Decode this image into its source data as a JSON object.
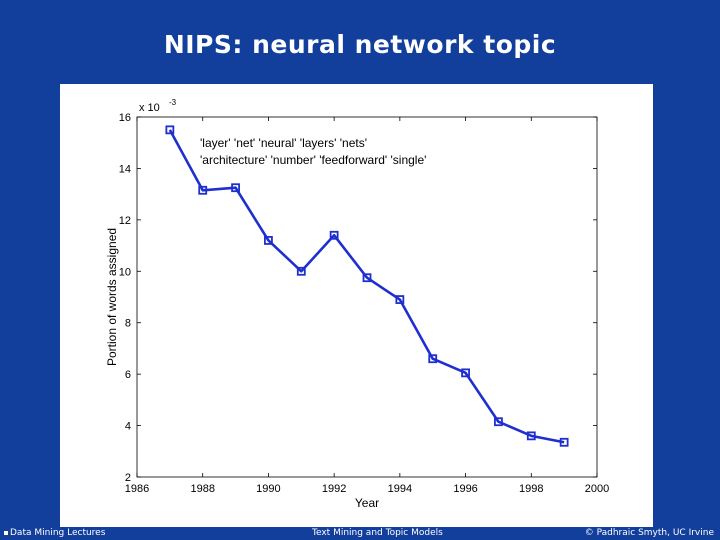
{
  "slide": {
    "title": "NIPS: neural network topic"
  },
  "footer": {
    "left": "Data Mining Lectures",
    "center": "Text Mining and Topic Models",
    "right": "© Padhraic Smyth, UC Irvine"
  },
  "chart_data": {
    "type": "line",
    "xlabel": "Year",
    "ylabel": "Portion of words assigned",
    "y_multiplier": "x 10",
    "y_multiplier_exp": "-3",
    "xlim": [
      1986,
      2000
    ],
    "ylim": [
      2,
      16
    ],
    "x_ticks": [
      1986,
      1988,
      1990,
      1992,
      1994,
      1996,
      1998,
      2000
    ],
    "y_ticks": [
      2,
      4,
      6,
      8,
      10,
      12,
      14,
      16
    ],
    "grid": false,
    "annotation_lines": [
      "'layer'  'net'  'neural'  'layers'  'nets'",
      "'architecture'  'number'  'feedforward'  'single'"
    ],
    "line_color": "#1f2fcf",
    "series": [
      {
        "x": [
          1987,
          1988,
          1989,
          1990,
          1991,
          1992,
          1993,
          1994,
          1995,
          1996,
          1997,
          1998,
          1999
        ],
        "values": [
          15.5,
          13.15,
          13.25,
          11.2,
          10.0,
          11.4,
          9.75,
          8.9,
          6.6,
          6.05,
          4.15,
          3.6,
          3.35
        ]
      }
    ]
  }
}
